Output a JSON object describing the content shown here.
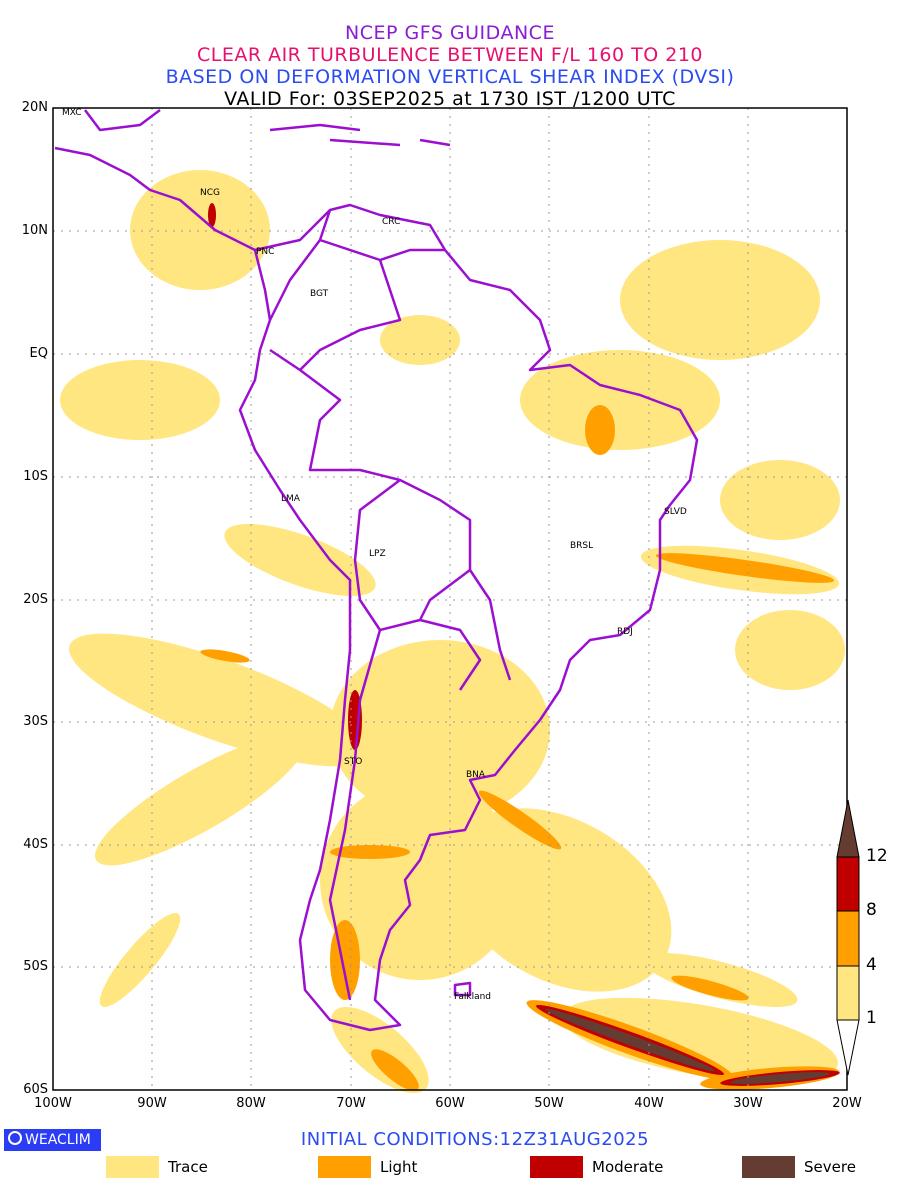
{
  "title": {
    "line1": "NCEP GFS GUIDANCE",
    "line2": "CLEAR AIR TURBULENCE BETWEEN F/L 160 TO 210",
    "line3": "BASED ON DEFORMATION VERTICAL SHEAR INDEX (DVSI)",
    "line4": "VALID For: 03SEP2025 at 1730 IST /1200 UTC"
  },
  "axes": {
    "lat": [
      "20N",
      "10N",
      "EQ",
      "10S",
      "20S",
      "30S",
      "40S",
      "50S",
      "60S"
    ],
    "lon": [
      "100W",
      "90W",
      "80W",
      "70W",
      "60W",
      "50W",
      "40W",
      "30W",
      "20W"
    ]
  },
  "cities": {
    "mxc": "MXC",
    "ncg": "NCG",
    "pnc": "PNC",
    "crc": "CRC",
    "bgt": "BGT",
    "lma": "LMA",
    "lpz": "LPZ",
    "brsl": "BRSL",
    "slvd": "SLVD",
    "rdj": "RDJ",
    "sto": "STO",
    "bna": "BNA",
    "falkland": "Falkland"
  },
  "colorbar": {
    "levels": [
      "1",
      "4",
      "8",
      "12"
    ]
  },
  "colors": {
    "trace": "#ffe680",
    "light": "#ffa000",
    "moderate": "#c00000",
    "severe": "#643c32",
    "border": "#9b0fd0"
  },
  "footer": {
    "logo": "WEACLIM",
    "initial": "INITIAL  CONDITIONS:12Z31AUG2025",
    "legend": [
      "Trace",
      "Light",
      "Moderate",
      "Severe"
    ]
  }
}
